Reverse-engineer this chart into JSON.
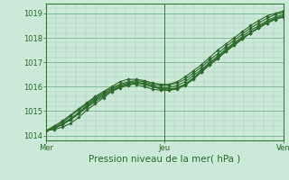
{
  "title": "",
  "xlabel": "Pression niveau de la mer( hPa )",
  "bg_color": "#cce8d8",
  "plot_bg_color": "#cce8d8",
  "grid_major_color": "#88bb99",
  "grid_minor_color": "#aaccbb",
  "line_color": "#2d6b2d",
  "ylim": [
    1013.8,
    1019.4
  ],
  "xlim": [
    0,
    96
  ],
  "xticks": [
    0,
    48,
    96
  ],
  "xtick_labels": [
    "Mer",
    "Jeu",
    "Ven"
  ],
  "yticks": [
    1014,
    1015,
    1016,
    1017,
    1018,
    1019
  ],
  "series": [
    [
      1014.2,
      1014.25,
      1014.35,
      1014.5,
      1014.75,
      1015.05,
      1015.3,
      1015.55,
      1015.8,
      1015.95,
      1016.05,
      1016.15,
      1016.15,
      1016.05,
      1015.95,
      1015.9,
      1015.95,
      1016.1,
      1016.35,
      1016.65,
      1016.95,
      1017.2,
      1017.5,
      1017.75,
      1018.0,
      1018.2,
      1018.4,
      1018.6,
      1018.75,
      1018.85
    ],
    [
      1014.2,
      1014.3,
      1014.45,
      1014.65,
      1014.9,
      1015.15,
      1015.4,
      1015.6,
      1015.8,
      1016.0,
      1016.1,
      1016.15,
      1016.1,
      1016.0,
      1015.9,
      1015.85,
      1015.9,
      1016.05,
      1016.3,
      1016.6,
      1016.9,
      1017.15,
      1017.45,
      1017.7,
      1017.95,
      1018.2,
      1018.4,
      1018.6,
      1018.75,
      1018.85
    ],
    [
      1014.2,
      1014.3,
      1014.45,
      1014.65,
      1014.9,
      1015.2,
      1015.45,
      1015.65,
      1015.85,
      1016.0,
      1016.1,
      1016.1,
      1016.0,
      1015.9,
      1015.85,
      1015.85,
      1015.95,
      1016.1,
      1016.35,
      1016.6,
      1016.9,
      1017.15,
      1017.45,
      1017.7,
      1017.95,
      1018.2,
      1018.45,
      1018.65,
      1018.8,
      1018.9
    ],
    [
      1014.2,
      1014.3,
      1014.5,
      1014.7,
      1014.95,
      1015.25,
      1015.5,
      1015.7,
      1015.9,
      1016.05,
      1016.15,
      1016.2,
      1016.1,
      1016.0,
      1015.95,
      1015.95,
      1016.05,
      1016.2,
      1016.45,
      1016.7,
      1017.0,
      1017.25,
      1017.55,
      1017.8,
      1018.05,
      1018.3,
      1018.5,
      1018.7,
      1018.85,
      1018.95
    ],
    [
      1014.2,
      1014.35,
      1014.55,
      1014.8,
      1015.05,
      1015.3,
      1015.55,
      1015.75,
      1015.95,
      1016.1,
      1016.2,
      1016.25,
      1016.2,
      1016.1,
      1016.05,
      1016.05,
      1016.15,
      1016.3,
      1016.55,
      1016.8,
      1017.1,
      1017.35,
      1017.65,
      1017.9,
      1018.15,
      1018.4,
      1018.6,
      1018.8,
      1018.95,
      1019.05
    ],
    [
      1014.2,
      1014.4,
      1014.6,
      1014.85,
      1015.1,
      1015.35,
      1015.6,
      1015.8,
      1016.0,
      1016.2,
      1016.3,
      1016.3,
      1016.25,
      1016.15,
      1016.1,
      1016.1,
      1016.2,
      1016.4,
      1016.65,
      1016.9,
      1017.2,
      1017.5,
      1017.75,
      1018.0,
      1018.25,
      1018.5,
      1018.7,
      1018.9,
      1019.0,
      1019.1
    ]
  ],
  "marker": "D",
  "marker_size": 1.8,
  "line_width": 0.8,
  "tick_fontsize": 6,
  "label_fontsize": 7.5,
  "vline_color": "#3a7a3a",
  "vline_lw": 0.7
}
